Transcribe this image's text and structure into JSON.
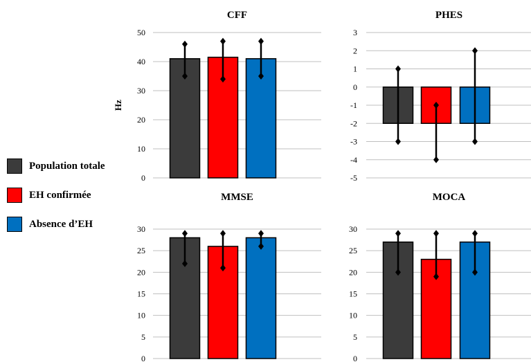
{
  "colors": {
    "series": [
      "#3b3b3b",
      "#ff0000",
      "#0070c0"
    ],
    "grid": "#bfbfbf",
    "errorbar": "#000000"
  },
  "legend": {
    "items": [
      {
        "label": "Population totale",
        "color": "#3b3b3b"
      },
      {
        "label": "EH confirmée",
        "color": "#ff0000"
      },
      {
        "label": "Absence d’EH",
        "color": "#0070c0"
      }
    ]
  },
  "chart_data": [
    {
      "type": "bar",
      "title": "CFF",
      "ylabel": "Hz",
      "ylim": [
        0,
        50
      ],
      "yticks": [
        "0",
        "10",
        "20",
        "30",
        "40",
        "50"
      ],
      "series": [
        {
          "name": "Population totale",
          "value": 41,
          "err_low": 35,
          "err_high": 46
        },
        {
          "name": "EH confirmée",
          "value": 41.5,
          "err_low": 34,
          "err_high": 47
        },
        {
          "name": "Absence d’EH",
          "value": 41,
          "err_low": 35,
          "err_high": 47
        }
      ],
      "grid": true
    },
    {
      "type": "bar",
      "title": "PHES",
      "ylabel": "",
      "ylim": [
        -5,
        3
      ],
      "yticks": [
        "-5",
        "-4",
        "-3",
        "-2",
        "-1",
        "0",
        "1",
        "2",
        "3"
      ],
      "series": [
        {
          "name": "Population totale",
          "value": -2,
          "err_low": -3,
          "err_high": 1
        },
        {
          "name": "EH confirmée",
          "value": -2,
          "err_low": -4,
          "err_high": -1
        },
        {
          "name": "Absence d’EH",
          "value": -2,
          "err_low": -3,
          "err_high": 2
        }
      ],
      "grid": true
    },
    {
      "type": "bar",
      "title": "MMSE",
      "ylabel": "",
      "ylim": [
        0,
        30
      ],
      "yticks": [
        "0",
        "5",
        "10",
        "15",
        "20",
        "25",
        "30"
      ],
      "series": [
        {
          "name": "Population totale",
          "value": 28,
          "err_low": 22,
          "err_high": 29
        },
        {
          "name": "EH confirmée",
          "value": 26,
          "err_low": 21,
          "err_high": 29
        },
        {
          "name": "Absence d’EH",
          "value": 28,
          "err_low": 26,
          "err_high": 29
        }
      ],
      "grid": true
    },
    {
      "type": "bar",
      "title": "MOCA",
      "ylabel": "",
      "ylim": [
        0,
        30
      ],
      "yticks": [
        "0",
        "5",
        "10",
        "15",
        "20",
        "25",
        "30"
      ],
      "series": [
        {
          "name": "Population totale",
          "value": 27,
          "err_low": 20,
          "err_high": 29
        },
        {
          "name": "EH confirmée",
          "value": 23,
          "err_low": 19,
          "err_high": 29
        },
        {
          "name": "Absence d’EH",
          "value": 27,
          "err_low": 20,
          "err_high": 29
        }
      ],
      "grid": true
    }
  ]
}
